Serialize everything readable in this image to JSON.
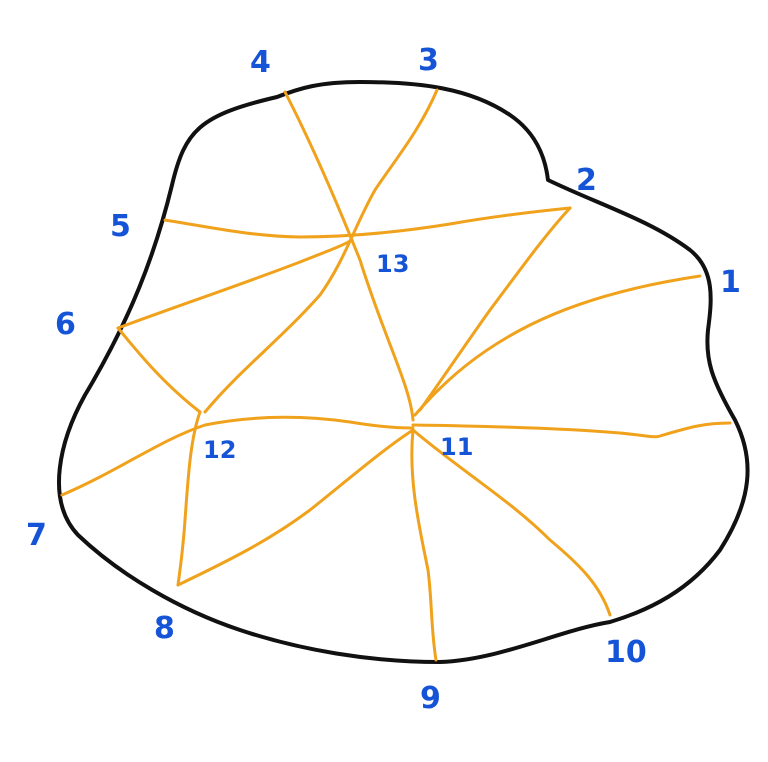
{
  "labels": {
    "v1": "1",
    "v2": "2",
    "v3": "3",
    "v4": "4",
    "v5": "5",
    "v6": "6",
    "v7": "7",
    "v8": "8",
    "v9": "9",
    "v10": "10",
    "v11": "11",
    "v12": "12",
    "v13": "13"
  },
  "colors": {
    "outline": "#111111",
    "edges": "#f0a21c",
    "labels": "#1554d6"
  }
}
